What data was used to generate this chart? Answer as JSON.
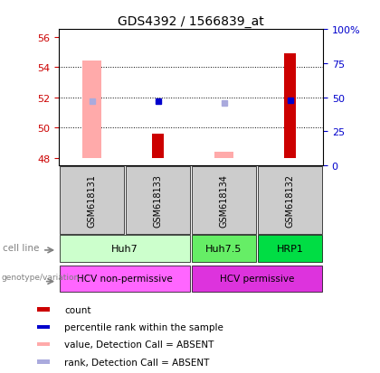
{
  "title": "GDS4392 / 1566839_at",
  "samples": [
    "GSM618131",
    "GSM618133",
    "GSM618134",
    "GSM618132"
  ],
  "ylim_left": [
    47.5,
    56.5
  ],
  "ylim_right": [
    0,
    100
  ],
  "yticks_left": [
    48,
    50,
    52,
    54,
    56
  ],
  "yticks_right": [
    0,
    25,
    50,
    75,
    100
  ],
  "yticklabels_right": [
    "0",
    "25",
    "50",
    "75",
    "100%"
  ],
  "bar_bottom": 48,
  "red_bars": {
    "GSM618131": null,
    "GSM618133": 49.6,
    "GSM618134": null,
    "GSM618132": 54.9
  },
  "pink_bars": {
    "GSM618131": 54.4,
    "GSM618133": null,
    "GSM618134": 48.38,
    "GSM618132": null
  },
  "blue_squares": {
    "GSM618133": 51.73,
    "GSM618132": 51.82
  },
  "lightblue_squares": {
    "GSM618131": 51.72,
    "GSM618134": 51.6
  },
  "cell_line_groups": [
    {
      "label": "Huh7",
      "cols": [
        0,
        1
      ],
      "color": "#ccffcc"
    },
    {
      "label": "Huh7.5",
      "cols": [
        2
      ],
      "color": "#66ee66"
    },
    {
      "label": "HRP1",
      "cols": [
        3
      ],
      "color": "#00dd44"
    }
  ],
  "genotype_groups": [
    {
      "label": "HCV non-permissive",
      "cols": [
        0,
        1
      ],
      "color": "#ff66ff"
    },
    {
      "label": "HCV permissive",
      "cols": [
        2,
        3
      ],
      "color": "#dd33dd"
    }
  ],
  "colors": {
    "red_bar": "#cc0000",
    "pink_bar": "#ffaaaa",
    "blue_sq": "#0000cc",
    "lightblue_sq": "#aaaadd",
    "left_tick": "#cc0000",
    "right_tick": "#0000cc",
    "sample_box": "#cccccc"
  },
  "legend": [
    {
      "color": "#cc0000",
      "label": "count"
    },
    {
      "color": "#0000cc",
      "label": "percentile rank within the sample"
    },
    {
      "color": "#ffaaaa",
      "label": "value, Detection Call = ABSENT"
    },
    {
      "color": "#aaaadd",
      "label": "rank, Detection Call = ABSENT"
    }
  ]
}
